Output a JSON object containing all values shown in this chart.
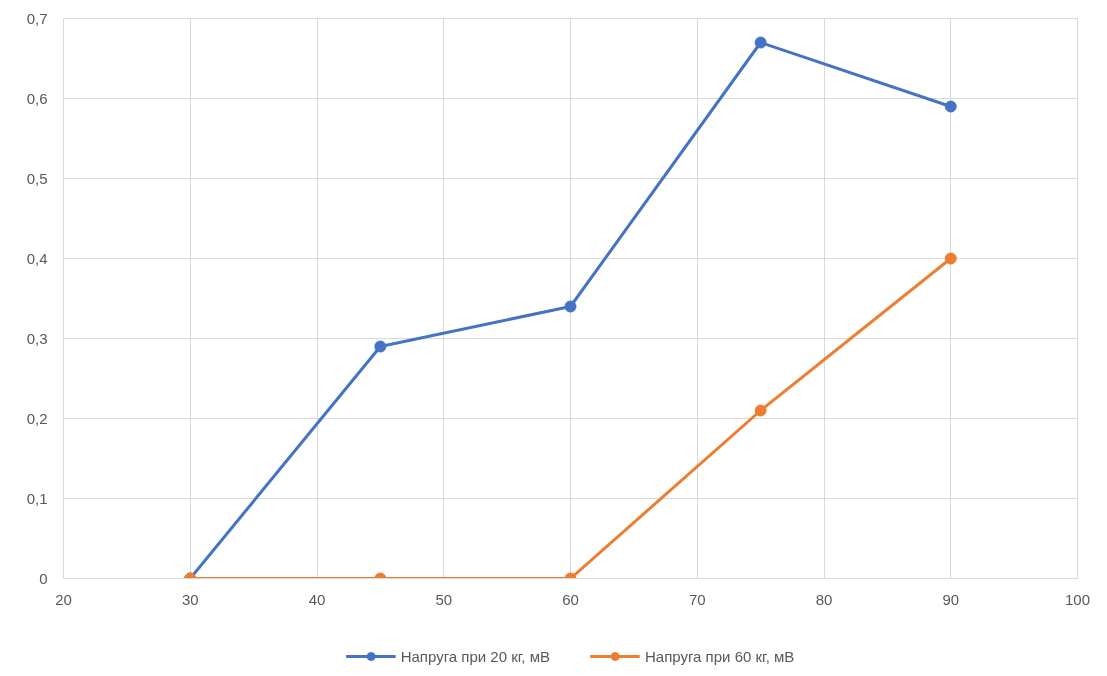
{
  "chart_data": {
    "type": "line",
    "x": [
      30,
      45,
      60,
      75,
      90
    ],
    "series": [
      {
        "name": "Напруга при 20 кг, мВ",
        "color": "#4472c4",
        "values": [
          0,
          0.29,
          0.34,
          0.67,
          0.59
        ]
      },
      {
        "name": "Напруга при 60 кг, мВ",
        "color": "#ed7d31",
        "values": [
          0,
          0,
          0,
          0.21,
          0.4
        ]
      }
    ],
    "xlim": [
      20,
      100
    ],
    "xticks": [
      20,
      30,
      40,
      50,
      60,
      70,
      80,
      90,
      100
    ],
    "ylim": [
      0,
      0.7
    ],
    "yticks": [
      {
        "value": 0,
        "label": "0"
      },
      {
        "value": 0.1,
        "label": "0,1"
      },
      {
        "value": 0.2,
        "label": "0,2"
      },
      {
        "value": 0.3,
        "label": "0,3"
      },
      {
        "value": 0.4,
        "label": "0,4"
      },
      {
        "value": 0.5,
        "label": "0,5"
      },
      {
        "value": 0.6,
        "label": "0,6"
      },
      {
        "value": 0.7,
        "label": "0,7"
      }
    ],
    "grid": true,
    "legend": "bottom",
    "marker": "circle",
    "line_style": "solid"
  }
}
